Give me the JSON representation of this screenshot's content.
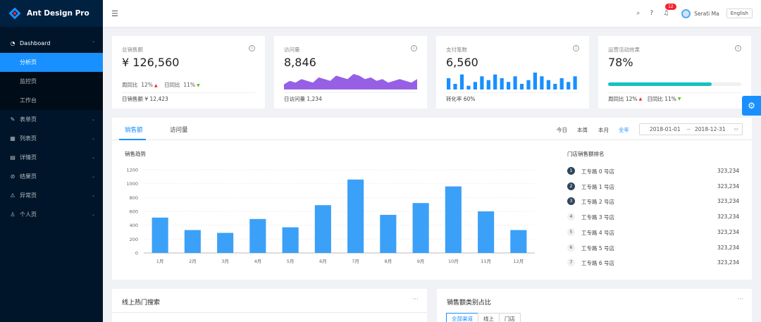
{
  "app": {
    "title": "Ant Design Pro"
  },
  "sidebar": {
    "items": [
      {
        "label": "Dashboard",
        "icon": "dashboard-icon"
      },
      {
        "label": "表单页",
        "icon": "form-icon"
      },
      {
        "label": "列表页",
        "icon": "table-icon"
      },
      {
        "label": "详情页",
        "icon": "profile-icon"
      },
      {
        "label": "结果页",
        "icon": "check-circle-icon"
      },
      {
        "label": "异常页",
        "icon": "warning-icon"
      },
      {
        "label": "个人页",
        "icon": "user-icon"
      }
    ],
    "dashboard_children": [
      "分析页",
      "监控页",
      "工作台"
    ],
    "active_child": "分析页"
  },
  "header": {
    "notification_count": "12",
    "username": "Serati Ma",
    "language": "English"
  },
  "stats": [
    {
      "label": "总销售额",
      "value": "¥ 126,560",
      "wow_label": "周同比",
      "wow": "12%",
      "dod_label": "日同比",
      "dod": "11%",
      "footer": "日销售额  ¥ 12,423"
    },
    {
      "label": "访问量",
      "value": "8,846",
      "footer": "日访问量  1,234"
    },
    {
      "label": "支付笔数",
      "value": "6,560",
      "footer": "转化率  60%"
    },
    {
      "label": "运营活动效果",
      "value": "78%",
      "progress": 0.78,
      "wow_label": "周同比",
      "wow": "12%",
      "dod_label": "日同比",
      "dod": "11%"
    }
  ],
  "mini_charts": {
    "visits": [
      3,
      5,
      4,
      6,
      5,
      4,
      7,
      6,
      5,
      8,
      7,
      6,
      9,
      8,
      6,
      7,
      5,
      6,
      4,
      5,
      6,
      5,
      4,
      6
    ],
    "payments": [
      6,
      3,
      8,
      2,
      4,
      7,
      5,
      8,
      6,
      4,
      7,
      3,
      5,
      9,
      7,
      5,
      3,
      6,
      4,
      7
    ]
  },
  "sales_card": {
    "tabs": [
      "销售额",
      "访问量"
    ],
    "active_tab": "销售额",
    "ranges": [
      "今日",
      "本周",
      "本月",
      "全年"
    ],
    "active_range": "全年",
    "date_start": "2018-01-01",
    "date_sep": "~",
    "date_end": "2018-12-31",
    "chart_title": "销售趋势",
    "rank_title": "门店销售额排名",
    "ranking": [
      {
        "rank": "1",
        "name": "工专路 0 号店",
        "value": "323,234"
      },
      {
        "rank": "2",
        "name": "工专路 1 号店",
        "value": "323,234"
      },
      {
        "rank": "3",
        "name": "工专路 2 号店",
        "value": "323,234"
      },
      {
        "rank": "4",
        "name": "工专路 3 号店",
        "value": "323,234"
      },
      {
        "rank": "5",
        "name": "工专路 4 号店",
        "value": "323,234"
      },
      {
        "rank": "6",
        "name": "工专路 5 号店",
        "value": "323,234"
      },
      {
        "rank": "7",
        "name": "工专路 6 号店",
        "value": "323,234"
      }
    ]
  },
  "chart_data": {
    "type": "bar",
    "categories": [
      "1月",
      "2月",
      "3月",
      "4月",
      "5月",
      "6月",
      "7月",
      "8月",
      "9月",
      "10月",
      "11月",
      "12月"
    ],
    "values": [
      510,
      330,
      290,
      490,
      370,
      690,
      1060,
      550,
      720,
      960,
      600,
      330
    ],
    "yticks": [
      "0",
      "200",
      "400",
      "600",
      "800",
      "1000",
      "1200"
    ],
    "ylim": [
      0,
      1200
    ],
    "color": "#3ba0f7",
    "grid": true
  },
  "bottom": {
    "search_title": "线上热门搜索",
    "category_title": "销售额类别占比",
    "more": "···",
    "category_tabs": [
      "全部渠道",
      "线上",
      "门店"
    ],
    "active_category_tab": "全部渠道"
  },
  "colors": {
    "primary": "#1890ff",
    "sidebar": "#001529",
    "area": "#975fe4",
    "progress": "#13c2c2"
  }
}
